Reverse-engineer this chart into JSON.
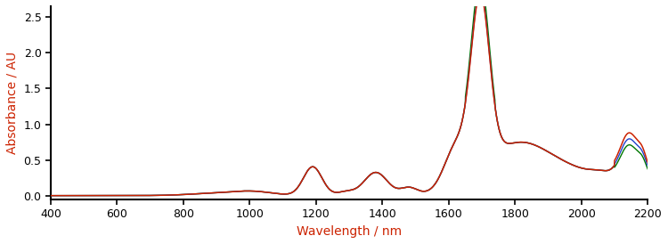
{
  "x_min": 400,
  "x_max": 2200,
  "y_min": -0.05,
  "y_max": 2.65,
  "xlabel": "Wavelength / nm",
  "ylabel": "Absorbance / AU",
  "xlabel_color": "#cc2200",
  "ylabel_color": "#cc2200",
  "tick_label_color": "#000000",
  "background_color": "#ffffff",
  "line_colors": [
    "#cc2200",
    "#007700",
    "#2244cc"
  ],
  "x_ticks": [
    400,
    600,
    800,
    1000,
    1200,
    1400,
    1600,
    1800,
    2000,
    2200
  ],
  "y_ticks": [
    0.0,
    0.5,
    1.0,
    1.5,
    2.0,
    2.5
  ]
}
